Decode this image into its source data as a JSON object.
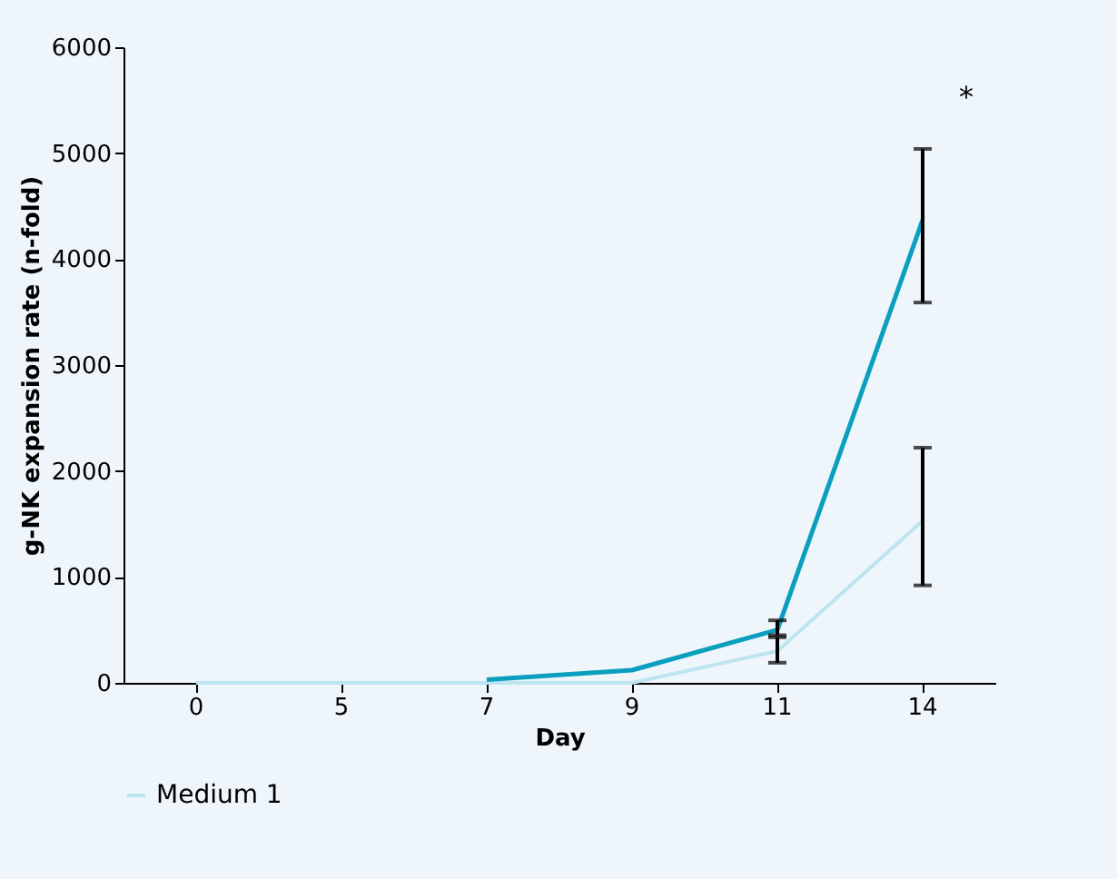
{
  "chart_data": {
    "type": "line",
    "xlabel": "Day",
    "ylabel": "g-NK expansion rate (n-fold)",
    "categories": [
      "0",
      "5",
      "7",
      "9",
      "11",
      "14"
    ],
    "series": [
      {
        "name": "Medium 1",
        "color": "#bde4ef",
        "values": [
          0,
          0,
          0,
          0,
          300,
          1530
        ],
        "errors": [
          null,
          null,
          null,
          null,
          [
            190,
            430
          ],
          [
            920,
            2220
          ]
        ]
      },
      {
        "color": "#0a9fbe",
        "values": [
          null,
          null,
          30,
          120,
          500,
          4370
        ],
        "errors": [
          null,
          null,
          null,
          null,
          [
            450,
            590
          ],
          [
            3590,
            5040
          ]
        ]
      }
    ],
    "annotations": [
      "*"
    ],
    "ylim": [
      0,
      6000
    ],
    "yticks": [
      0,
      1000,
      2000,
      3000,
      4000,
      5000,
      6000
    ],
    "grid": false,
    "legend": "bottom",
    "marker": "none"
  }
}
